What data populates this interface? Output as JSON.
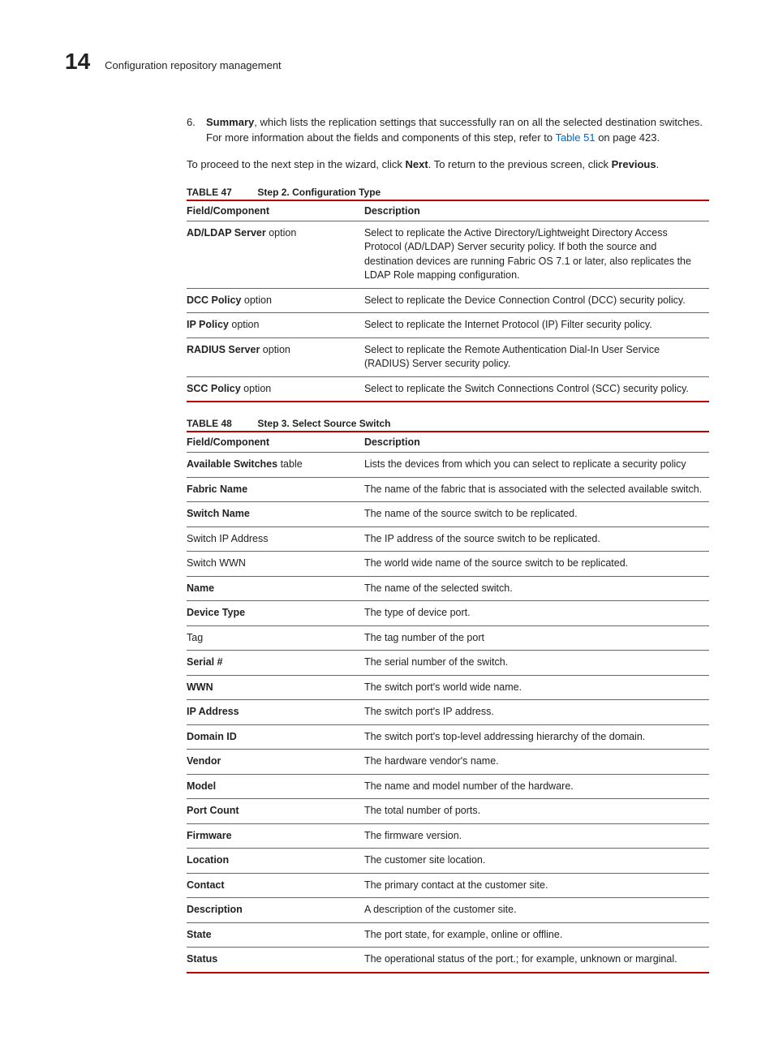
{
  "header": {
    "page_number": "14",
    "title": "Configuration repository management"
  },
  "summary_item": {
    "number": "6.",
    "bold_lead": "Summary",
    "rest1": ", which lists the replication settings that successfully ran on all the selected destination switches. For more information about the fields and components of this step, refer to ",
    "link": "Table 51",
    "rest2": " on page 423."
  },
  "wizard_note": {
    "pre1": "To proceed to the next step in the wizard, click ",
    "b1": "Next",
    "mid": ". To return to the previous screen, click ",
    "b2": "Previous",
    "end": "."
  },
  "table47": {
    "label": "TABLE 47",
    "title": "Step 2. Configuration Type",
    "head_field": "Field/Component",
    "head_desc": "Description",
    "rows": [
      {
        "field_bold": "AD/LDAP Server",
        "field_rest": " option",
        "desc": "Select to replicate the Active Directory/Lightweight Directory Access Protocol (AD/LDAP) Server security policy. If both the source and destination devices are running Fabric OS 7.1 or later, also replicates the LDAP Role mapping configuration."
      },
      {
        "field_bold": "DCC Policy",
        "field_rest": " option",
        "desc": "Select to replicate the Device Connection Control (DCC) security policy."
      },
      {
        "field_bold": "IP Policy",
        "field_rest": " option",
        "desc": "Select to replicate the Internet Protocol (IP) Filter security policy."
      },
      {
        "field_bold": "RADIUS Server",
        "field_rest": " option",
        "desc": "Select to replicate the Remote Authentication Dial-In User Service (RADIUS) Server security policy."
      },
      {
        "field_bold": "SCC Policy",
        "field_rest": " option",
        "desc": "Select to replicate the Switch Connections Control (SCC) security policy."
      }
    ]
  },
  "table48": {
    "label": "TABLE 48",
    "title": "Step 3. Select Source Switch",
    "head_field": "Field/Component",
    "head_desc": "Description",
    "rows": [
      {
        "field_bold": "Available Switches",
        "field_rest": " table",
        "desc": "Lists the devices from which you can select to replicate a security policy"
      },
      {
        "field_bold": "Fabric Name",
        "field_rest": "",
        "desc": "The name of the fabric that is associated with the selected available switch."
      },
      {
        "field_bold": "Switch Name",
        "field_rest": "",
        "desc": "The name of the source switch to be replicated."
      },
      {
        "field_bold": "",
        "field_plain": "Switch IP Address",
        "field_rest": "",
        "desc": "The IP address of the source switch to be replicated."
      },
      {
        "field_bold": "",
        "field_plain": "Switch WWN",
        "field_rest": "",
        "desc": "The world wide name of the source switch to be replicated."
      },
      {
        "field_bold": "Name",
        "field_rest": "",
        "desc": "The name of the selected switch."
      },
      {
        "field_bold": "Device Type",
        "field_rest": "",
        "desc": "The type of device port."
      },
      {
        "field_bold": "",
        "field_plain": "Tag",
        "field_rest": "",
        "desc": "The tag number of the port"
      },
      {
        "field_bold": "Serial #",
        "field_rest": "",
        "desc": "The serial number of the switch."
      },
      {
        "field_bold": "WWN",
        "field_rest": "",
        "desc": "The switch port's world wide name."
      },
      {
        "field_bold": "IP Address",
        "field_rest": "",
        "desc": "The switch port's IP address."
      },
      {
        "field_bold": "Domain ID",
        "field_rest": "",
        "desc": "The switch port's top-level addressing hierarchy of the domain."
      },
      {
        "field_bold": "Vendor",
        "field_rest": "",
        "desc": "The hardware vendor's name."
      },
      {
        "field_bold": "Model",
        "field_rest": "",
        "desc": "The name and model number of the hardware."
      },
      {
        "field_bold": "Port Count",
        "field_rest": "",
        "desc": "The total number of ports."
      },
      {
        "field_bold": "Firmware",
        "field_rest": "",
        "desc": "The firmware version."
      },
      {
        "field_bold": "Location",
        "field_rest": "",
        "desc": "The customer site location."
      },
      {
        "field_bold": "Contact",
        "field_rest": "",
        "desc": "The primary contact at the customer site."
      },
      {
        "field_bold": "Description",
        "field_rest": "",
        "desc": "A description of the customer site."
      },
      {
        "field_bold": "State",
        "field_rest": "",
        "desc": "The port state, for example, online or offline."
      },
      {
        "field_bold": "Status",
        "field_rest": "",
        "desc": "The operational status of the port.; for example, unknown or marginal."
      }
    ]
  }
}
